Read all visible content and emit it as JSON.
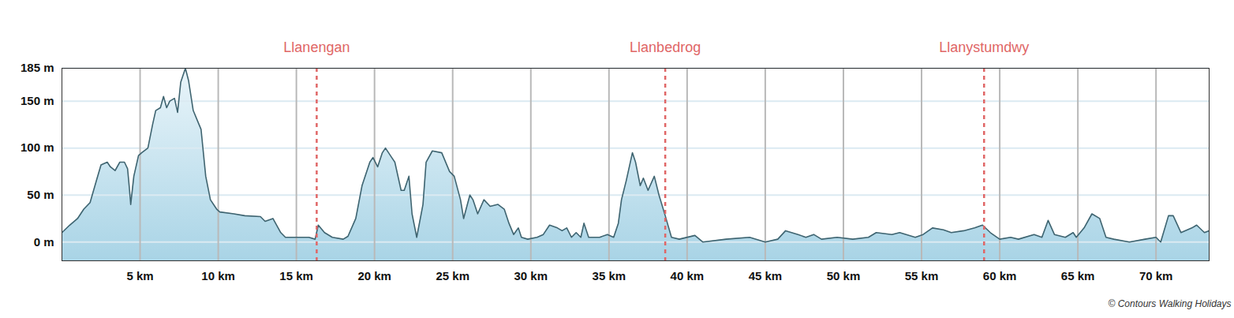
{
  "chart_data": {
    "type": "area",
    "x": [
      0,
      0.5,
      1.0,
      1.4,
      1.8,
      2.2,
      2.5,
      2.9,
      3.1,
      3.4,
      3.7,
      4.0,
      4.2,
      4.3,
      4.4,
      4.6,
      4.9,
      5.1,
      5.5,
      5.8,
      6.0,
      6.3,
      6.5,
      6.7,
      6.9,
      7.2,
      7.4,
      7.6,
      7.9,
      8.1,
      8.4,
      8.7,
      8.9,
      9.2,
      9.5,
      9.9,
      10.1,
      11.0,
      11.7,
      12.7,
      13.0,
      13.5,
      14.0,
      14.3,
      15.8,
      16.2,
      16.4,
      16.8,
      17.3,
      18.0,
      18.3,
      18.8,
      19.2,
      19.7,
      19.9,
      20.2,
      20.5,
      20.7,
      21.1,
      21.3,
      21.7,
      21.9,
      22.2,
      22.4,
      22.7,
      23.1,
      23.3,
      23.7,
      24.3,
      24.8,
      25.1,
      25.5,
      25.7,
      26.1,
      26.3,
      26.6,
      27.0,
      27.4,
      27.9,
      28.3,
      28.6,
      28.9,
      29.2,
      29.4,
      29.8,
      30.4,
      30.8,
      31.2,
      31.7,
      32.0,
      32.3,
      32.6,
      32.9,
      33.2,
      33.4,
      33.7,
      34.4,
      34.9,
      35.3,
      35.6,
      35.8,
      36.1,
      36.5,
      36.7,
      37.0,
      37.2,
      37.5,
      37.9,
      38.2,
      38.6,
      39.0,
      39.5,
      40.5,
      41.0,
      42.5,
      44.0,
      45.0,
      45.8,
      46.3,
      47.1,
      47.6,
      48.1,
      48.6,
      49.6,
      50.6,
      51.6,
      52.1,
      53.1,
      53.6,
      54.6,
      55.1,
      55.7,
      56.4,
      56.9,
      57.7,
      58.4,
      58.9,
      59.4,
      60.0,
      60.7,
      61.2,
      62.2,
      62.7,
      63.1,
      63.5,
      64.2,
      64.7,
      64.9,
      65.4,
      65.9,
      66.4,
      66.8,
      67.3,
      68.3,
      69.3,
      70.0,
      70.3,
      70.8,
      71.1,
      71.6,
      72.3,
      72.6,
      73.1,
      73.4
    ],
    "values": [
      10,
      18,
      25,
      35,
      42,
      65,
      82,
      85,
      80,
      76,
      85,
      85,
      78,
      60,
      40,
      70,
      92,
      95,
      100,
      125,
      140,
      143,
      155,
      143,
      150,
      153,
      138,
      170,
      185,
      172,
      140,
      128,
      120,
      70,
      45,
      35,
      32,
      30,
      28,
      27,
      22,
      25,
      10,
      5,
      5,
      3,
      18,
      10,
      5,
      3,
      6,
      25,
      60,
      85,
      90,
      80,
      95,
      100,
      90,
      85,
      55,
      55,
      70,
      30,
      5,
      40,
      85,
      97,
      95,
      75,
      70,
      45,
      25,
      50,
      45,
      30,
      45,
      38,
      40,
      35,
      20,
      8,
      15,
      5,
      3,
      5,
      8,
      18,
      15,
      12,
      15,
      5,
      10,
      5,
      20,
      5,
      5,
      8,
      5,
      20,
      45,
      65,
      95,
      85,
      60,
      68,
      55,
      70,
      50,
      28,
      5,
      3,
      7,
      0,
      3,
      5,
      0,
      3,
      12,
      8,
      5,
      8,
      3,
      5,
      3,
      5,
      10,
      8,
      10,
      5,
      8,
      15,
      13,
      10,
      12,
      15,
      18,
      10,
      3,
      5,
      3,
      8,
      5,
      23,
      8,
      5,
      10,
      5,
      15,
      30,
      25,
      5,
      3,
      0,
      3,
      5,
      0,
      28,
      28,
      10,
      15,
      18,
      10,
      12
    ],
    "color": "#3f6470",
    "xlim": [
      0,
      73.4
    ],
    "xticks": [
      {
        "value": 5,
        "label": "5 km"
      },
      {
        "value": 10,
        "label": "10 km"
      },
      {
        "value": 15,
        "label": "15 km"
      },
      {
        "value": 20,
        "label": "20 km"
      },
      {
        "value": 25,
        "label": "25 km"
      },
      {
        "value": 30,
        "label": "30 km"
      },
      {
        "value": 35,
        "label": "35 km"
      },
      {
        "value": 40,
        "label": "40 km"
      },
      {
        "value": 45,
        "label": "45 km"
      },
      {
        "value": 50,
        "label": "50 km"
      },
      {
        "value": 55,
        "label": "55 km"
      },
      {
        "value": 60,
        "label": "60 km"
      },
      {
        "value": 65,
        "label": "65 km"
      },
      {
        "value": 70,
        "label": "70 km"
      }
    ],
    "ylim": [
      -20,
      185
    ],
    "yticks": [
      {
        "value": 0,
        "label": "0 m"
      },
      {
        "value": 50,
        "label": "50 m"
      },
      {
        "value": 100,
        "label": "100 m"
      },
      {
        "value": 150,
        "label": "150 m"
      },
      {
        "value": 185,
        "label": "185 m"
      }
    ],
    "grid": true,
    "annotations": [
      {
        "x": 16.3,
        "text": "Llanengan"
      },
      {
        "x": 38.6,
        "text": "Llanbedrog"
      },
      {
        "x": 59.0,
        "text": "Llanystumdwy"
      }
    ],
    "caption": "© Contours Walking Holidays"
  }
}
